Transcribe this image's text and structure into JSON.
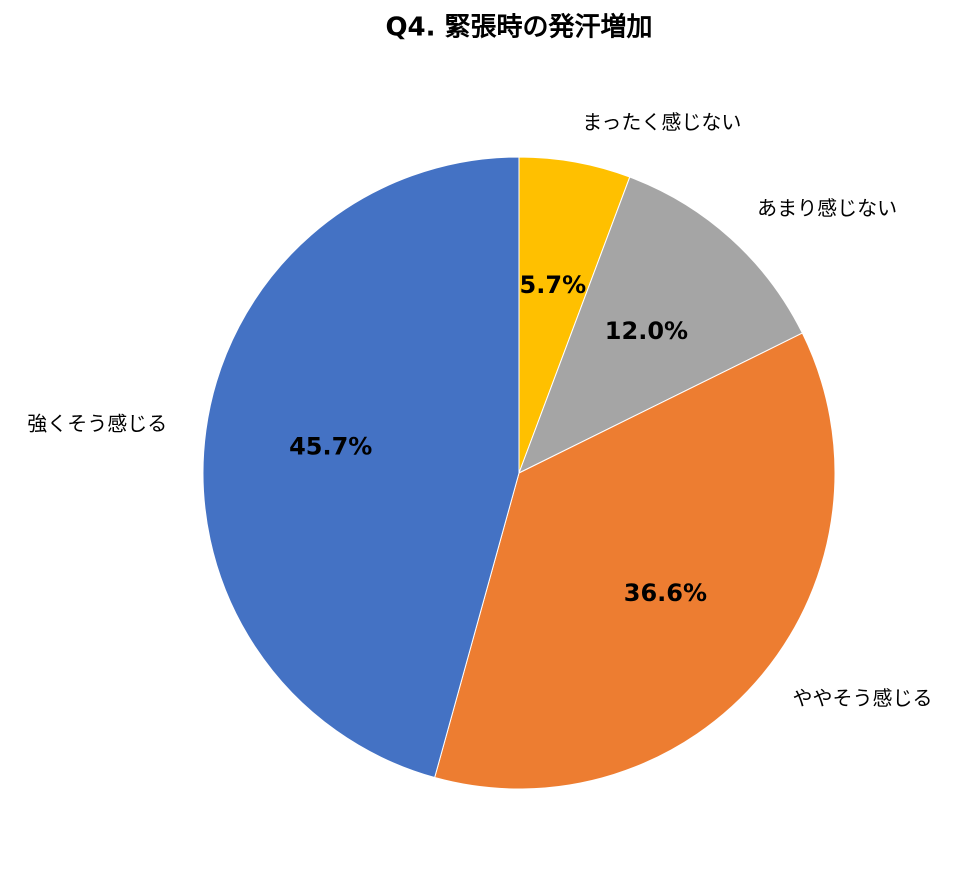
{
  "chart_data": {
    "type": "pie",
    "title": "Q4. 緊張時の発汗増加",
    "categories": [
      "まったく感じない",
      "あまり感じない",
      "ややそう感じる",
      "強くそう感じる"
    ],
    "values": [
      5.7,
      12.0,
      36.6,
      45.7
    ],
    "value_labels": [
      "5.7%",
      "12.0%",
      "36.6%",
      "45.7%"
    ],
    "colors": [
      "#ffc000",
      "#a5a5a5",
      "#ed7d31",
      "#4472c4"
    ]
  }
}
